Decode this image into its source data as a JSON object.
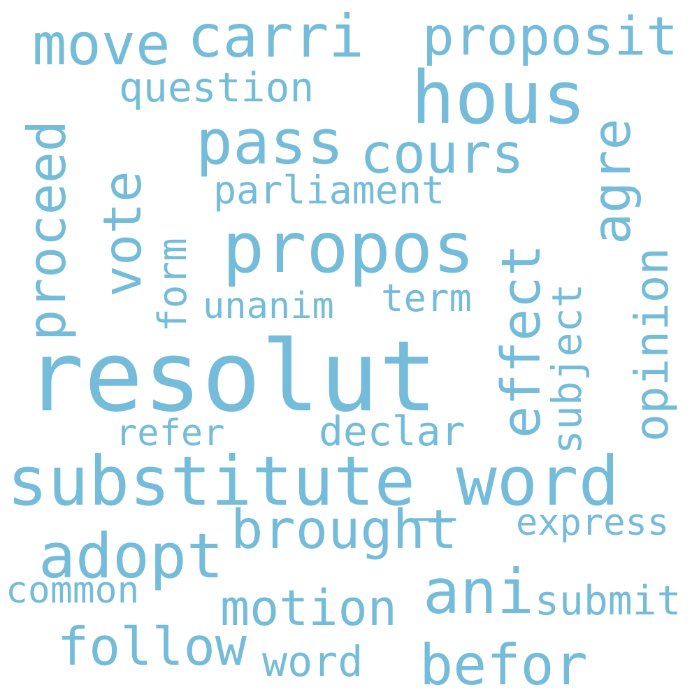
{
  "color": "#74bcd9",
  "background": "#ffffff",
  "words": {
    "resolut": "resolut",
    "substitute_word": "substitute_word",
    "propos": "propos",
    "hous": "hous",
    "carri": "carri",
    "move": "move",
    "proposit": "proposit",
    "pass": "pass",
    "cours": "cours",
    "adopt": "adopt",
    "brought": "brought",
    "ani": "ani",
    "befor": "befor",
    "follow": "follow",
    "motion": "motion",
    "submit": "submit",
    "word": "word",
    "common": "common",
    "express": "express",
    "declar": "declar",
    "refer": "refer",
    "term": "term",
    "unanim": "unanim",
    "parliament": "parliament",
    "question": "question",
    "proceed": "proceed",
    "vote": "vote",
    "form": "form",
    "effect": "effect",
    "subject": "subject",
    "agre": "agre",
    "opinion": "opinion"
  }
}
